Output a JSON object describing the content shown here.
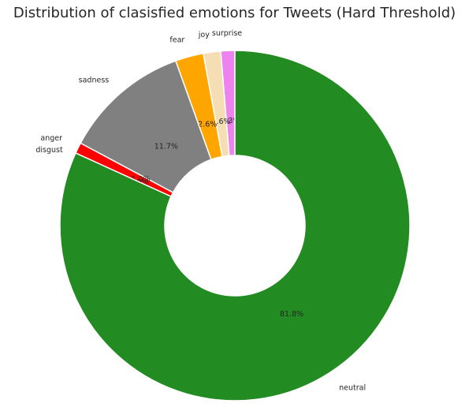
{
  "chart_data": {
    "type": "pie",
    "title": "Distribution of clasisfied emotions for Tweets (Hard Threshold)",
    "donut": true,
    "categories": [
      "surprise",
      "joy",
      "fear",
      "sadness",
      "anger",
      "disgust",
      "neutral"
    ],
    "values": [
      1.3,
      1.6,
      2.6,
      11.7,
      1.0,
      0.0,
      81.8
    ],
    "value_labels": [
      "1.3%",
      "1.6%",
      "2.6%",
      "11.7%",
      "1.0%",
      "0.0%",
      "81.8%"
    ],
    "colors": [
      "#ee82ee",
      "#f5deb3",
      "#ffa500",
      "#808080",
      "#ff0000",
      "#8b4513",
      "#228b22"
    ]
  }
}
